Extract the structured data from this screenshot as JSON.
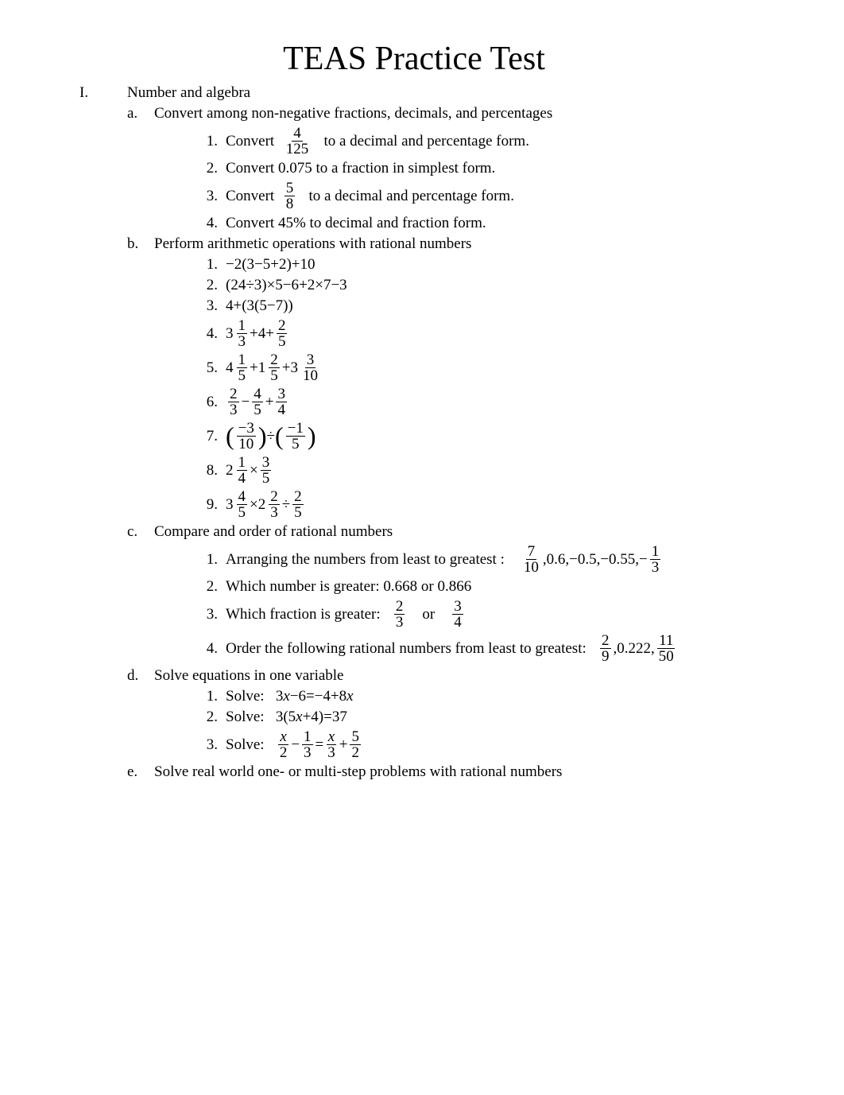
{
  "title": "TEAS Practice Test",
  "roman": "I.",
  "roman_label": "Number and algebra",
  "sections": {
    "a": {
      "letter": "a.",
      "heading": "Convert among non-negative fractions, decimals, and percentages",
      "items": [
        {
          "n": "1.",
          "pre": "Convert  ",
          "frac": {
            "num": "4",
            "den": "125"
          },
          "post": "   to a decimal and percentage form."
        },
        {
          "n": "2.",
          "text": "Convert 0.075 to a fraction in simplest form."
        },
        {
          "n": "3.",
          "pre": "Convert  ",
          "frac": {
            "num": "5",
            "den": "8"
          },
          "post": "   to a decimal and percentage form."
        },
        {
          "n": "4.",
          "text": "Convert 45% to decimal and fraction form."
        }
      ]
    },
    "b": {
      "letter": "b.",
      "heading": "Perform arithmetic operations with rational numbers",
      "items": [
        {
          "n": "1.",
          "expr": "−2(3−5+2)+10"
        },
        {
          "n": "2.",
          "expr": "(24÷3)×5−6+2×7−3"
        },
        {
          "n": "3.",
          "expr": "4+(3(5−7))"
        },
        {
          "n": "4.",
          "parts": [
            {
              "mix": {
                "w": "3",
                "n": "1",
                "d": "3"
              }
            },
            {
              "op": "+4+"
            },
            {
              "frac": {
                "n": "2",
                "d": "5"
              }
            }
          ]
        },
        {
          "n": "5.",
          "parts": [
            {
              "mix": {
                "w": "4",
                "n": "1",
                "d": "5"
              }
            },
            {
              "op": "+"
            },
            {
              "mix": {
                "w": "1",
                "n": "2",
                "d": "5"
              }
            },
            {
              "op": "+"
            },
            {
              "mix": {
                "w": "3",
                "n": "3",
                "d": "10"
              }
            }
          ]
        },
        {
          "n": "6.",
          "parts": [
            {
              "frac": {
                "n": "2",
                "d": "3"
              }
            },
            {
              "op": "−"
            },
            {
              "frac": {
                "n": "4",
                "d": "5"
              }
            },
            {
              "op": "+"
            },
            {
              "frac": {
                "n": "3",
                "d": "4"
              }
            }
          ]
        },
        {
          "n": "7.",
          "parts": [
            {
              "pfrac": {
                "n": "−3",
                "d": "10"
              }
            },
            {
              "op": "÷"
            },
            {
              "pfrac": {
                "n": "−1",
                "d": "5"
              }
            }
          ]
        },
        {
          "n": "8.",
          "parts": [
            {
              "mix": {
                "w": "2",
                "n": "1",
                "d": "4"
              }
            },
            {
              "op": "×"
            },
            {
              "frac": {
                "n": "3",
                "d": "5"
              }
            }
          ]
        },
        {
          "n": "9.",
          "parts": [
            {
              "mix": {
                "w": "3",
                "n": "4",
                "d": "5"
              }
            },
            {
              "op": "×"
            },
            {
              "mix": {
                "w": "2",
                "n": "2",
                "d": "3"
              }
            },
            {
              "op": "÷"
            },
            {
              "frac": {
                "n": "2",
                "d": "5"
              }
            }
          ]
        }
      ]
    },
    "c": {
      "letter": "c.",
      "heading": "Compare and order of rational numbers",
      "items": [
        {
          "n": "1.",
          "pre": "Arranging the numbers from least to greatest :    ",
          "seq": [
            {
              "frac": {
                "n": "7",
                "d": "10"
              }
            },
            {
              "t": ",0.6,−0.5,−0.55,−"
            },
            {
              "frac": {
                "n": "1",
                "d": "3"
              }
            }
          ]
        },
        {
          "n": "2.",
          "text": "Which number is greater: 0.668 or 0.866"
        },
        {
          "n": "3.",
          "pre": "Which fraction is greater:   ",
          "seq": [
            {
              "frac": {
                "n": "2",
                "d": "3"
              }
            },
            {
              "t": "    or    "
            },
            {
              "frac": {
                "n": "3",
                "d": "4"
              }
            }
          ]
        },
        {
          "n": "4.",
          "pre": "Order the following rational numbers from least to greatest:   ",
          "seq": [
            {
              "frac": {
                "n": "2",
                "d": "9"
              }
            },
            {
              "t": ",0.222,"
            },
            {
              "frac": {
                "n": "11",
                "d": "50"
              }
            }
          ]
        }
      ]
    },
    "d": {
      "letter": "d.",
      "heading": "Solve equations in one variable",
      "items": [
        {
          "n": "1.",
          "pre": "Solve:   ",
          "eqn": "3x−6=−4+8x"
        },
        {
          "n": "2.",
          "pre": "Solve:   ",
          "eqn": "3(5x+4)=37"
        },
        {
          "n": "3.",
          "pre": "Solve:   ",
          "seq": [
            {
              "frac": {
                "n": "x",
                "d": "2",
                "ital": true
              }
            },
            {
              "t": "−"
            },
            {
              "frac": {
                "n": "1",
                "d": "3"
              }
            },
            {
              "t": "="
            },
            {
              "frac": {
                "n": "x",
                "d": "3",
                "ital": true
              }
            },
            {
              "t": "+"
            },
            {
              "frac": {
                "n": "5",
                "d": "2"
              }
            }
          ]
        }
      ]
    },
    "e": {
      "letter": "e.",
      "heading": "Solve real world one- or multi-step problems with rational numbers"
    }
  }
}
